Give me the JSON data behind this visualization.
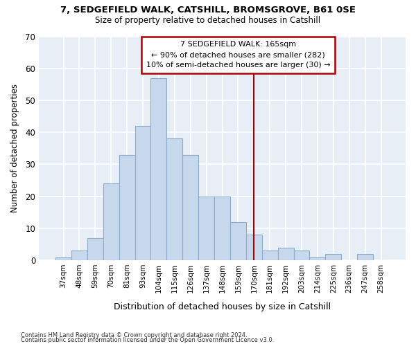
{
  "title_line1": "7, SEDGEFIELD WALK, CATSHILL, BROMSGROVE, B61 0SE",
  "title_line2": "Size of property relative to detached houses in Catshill",
  "xlabel": "Distribution of detached houses by size in Catshill",
  "ylabel": "Number of detached properties",
  "bar_labels": [
    "37sqm",
    "48sqm",
    "59sqm",
    "70sqm",
    "81sqm",
    "93sqm",
    "104sqm",
    "115sqm",
    "126sqm",
    "137sqm",
    "148sqm",
    "159sqm",
    "170sqm",
    "181sqm",
    "192sqm",
    "203sqm",
    "214sqm",
    "225sqm",
    "236sqm",
    "247sqm",
    "258sqm"
  ],
  "bar_values": [
    1,
    3,
    7,
    24,
    33,
    42,
    57,
    38,
    33,
    20,
    20,
    12,
    8,
    3,
    4,
    3,
    1,
    2,
    0,
    2,
    0
  ],
  "bar_color": "#c8d8ec",
  "bar_edge_color": "#8caccc",
  "bg_color": "#e8eef6",
  "grid_color": "#ffffff",
  "vline_x": 12.0,
  "vline_color": "#aa0000",
  "annotation_text": "7 SEDGEFIELD WALK: 165sqm\n← 90% of detached houses are smaller (282)\n10% of semi-detached houses are larger (30) →",
  "annotation_box_color": "#ffffff",
  "annotation_box_edge_color": "#aa0000",
  "footnote1": "Contains HM Land Registry data © Crown copyright and database right 2024.",
  "footnote2": "Contains public sector information licensed under the Open Government Licence v3.0.",
  "ylim": [
    0,
    70
  ],
  "yticks": [
    0,
    10,
    20,
    30,
    40,
    50,
    60,
    70
  ]
}
